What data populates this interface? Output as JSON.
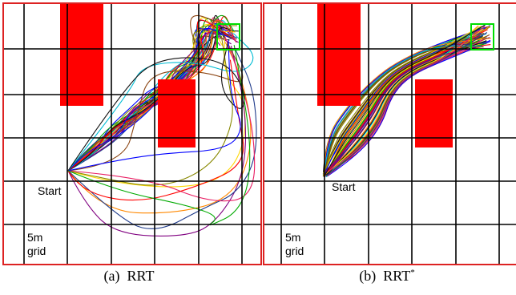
{
  "panels": [
    {
      "id": "a",
      "start_label": "Start",
      "scale_label_line1": "5m",
      "scale_label_line2": "grid",
      "caption_prefix": "(a)",
      "caption_name": "RRT",
      "caption_sup": ""
    },
    {
      "id": "b",
      "start_label": "Start",
      "scale_label_line1": "5m",
      "scale_label_line2": "grid",
      "caption_prefix": "(b)",
      "caption_name": "RRT",
      "caption_sup": "*"
    }
  ],
  "colors": {
    "obstacle": "#ff0000",
    "border": "#dd2222",
    "goal": "#00dd00",
    "grid": "#000000",
    "trajectories": [
      "#ff0000",
      "#0000ff",
      "#00aa00",
      "#ffd700",
      "#ff8800",
      "#800080",
      "#00bcd4",
      "#8b4513",
      "#888800",
      "#1e3a8a",
      "#e91e63",
      "#111111"
    ]
  }
}
